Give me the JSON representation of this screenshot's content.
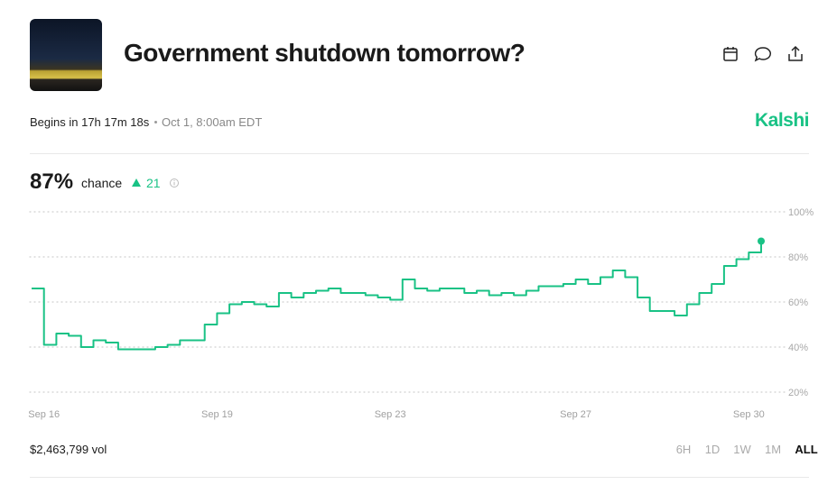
{
  "header": {
    "title": "Government shutdown tomorrow?",
    "begins": "Begins in 17h 17m 18s",
    "schedule": "Oct 1, 8:00am EDT",
    "brand": "Kalshi"
  },
  "summary": {
    "probability": "87%",
    "caption": "chance",
    "change": "21"
  },
  "chart_data": {
    "type": "line",
    "color": "#19c285",
    "grid": true,
    "categories": [
      null,
      "Sep 16",
      null,
      null,
      null,
      null,
      null,
      null,
      null,
      null,
      null,
      null,
      null,
      null,
      null,
      "Sep 19",
      null,
      null,
      null,
      null,
      null,
      null,
      null,
      null,
      null,
      null,
      null,
      null,
      null,
      "Sep 23",
      null,
      null,
      null,
      null,
      null,
      null,
      null,
      null,
      null,
      null,
      null,
      null,
      null,
      null,
      "Sep 27",
      null,
      null,
      null,
      null,
      null,
      null,
      null,
      null,
      null,
      null,
      null,
      null,
      null,
      "Sep 30",
      null
    ],
    "values": [
      66,
      41,
      46,
      45,
      40,
      43,
      42,
      39,
      39,
      39,
      40,
      41,
      43,
      43,
      50,
      55,
      59,
      60,
      59,
      58,
      64,
      62,
      64,
      65,
      66,
      64,
      64,
      63,
      62,
      61,
      70,
      66,
      65,
      66,
      66,
      64,
      65,
      63,
      64,
      63,
      65,
      67,
      67,
      68,
      70,
      68,
      71,
      74,
      71,
      62,
      56,
      56,
      54,
      59,
      64,
      68,
      76,
      79,
      82,
      87
    ],
    "ylim": [
      20,
      100
    ],
    "yticks": [
      {
        "value": 20,
        "label": "20%"
      },
      {
        "value": 40,
        "label": "40%"
      },
      {
        "value": 60,
        "label": "60%"
      },
      {
        "value": 80,
        "label": "80%"
      },
      {
        "value": 100,
        "label": "100%"
      }
    ]
  },
  "footer": {
    "volume": "$2,463,799 vol",
    "ranges": [
      "6H",
      "1D",
      "1W",
      "1M",
      "ALL"
    ],
    "selected_range": "ALL"
  }
}
